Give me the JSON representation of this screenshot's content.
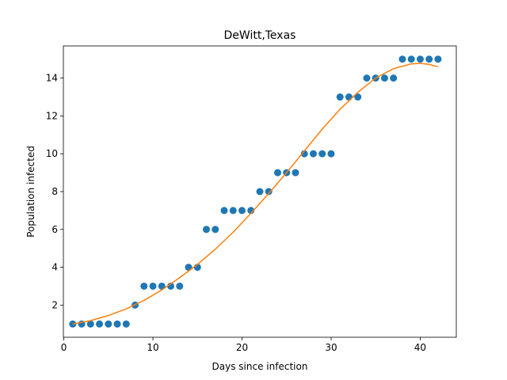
{
  "chart_data": {
    "type": "scatter",
    "title": "DeWitt,Texas",
    "xlabel": "Days since infection",
    "ylabel": "Population infected",
    "xlim": [
      -0.05,
      44.05
    ],
    "ylim": [
      0.3,
      15.7
    ],
    "xticks": [
      0,
      10,
      20,
      30,
      40
    ],
    "yticks": [
      2,
      4,
      6,
      8,
      10,
      12,
      14
    ],
    "grid": false,
    "legend": "none",
    "series": [
      {
        "kind": "scatter",
        "color": "#1f77b4",
        "x": [
          1,
          2,
          3,
          4,
          5,
          6,
          7,
          8,
          9,
          10,
          11,
          12,
          13,
          14,
          15,
          16,
          17,
          18,
          19,
          20,
          21,
          22,
          23,
          24,
          25,
          26,
          27,
          28,
          29,
          30,
          31,
          32,
          33,
          34,
          35,
          36,
          37,
          38,
          39,
          40,
          41,
          42
        ],
        "y": [
          1,
          1,
          1,
          1,
          1,
          1,
          1,
          2,
          3,
          3,
          3,
          3,
          3,
          4,
          4,
          6,
          6,
          7,
          7,
          7,
          7,
          8,
          8,
          9,
          9,
          9,
          10,
          10,
          10,
          10,
          13,
          13,
          13,
          14,
          14,
          14,
          14,
          15,
          15,
          15,
          15,
          15
        ]
      },
      {
        "kind": "line",
        "color": "#ff7f0e",
        "x": [
          1,
          3,
          5,
          7,
          9,
          11,
          13,
          15,
          17,
          19,
          21,
          23,
          25,
          27,
          29,
          31,
          33,
          35,
          37,
          39,
          40,
          41,
          42
        ],
        "y": [
          1.0,
          1.18,
          1.45,
          1.8,
          2.25,
          2.8,
          3.45,
          4.15,
          4.95,
          5.85,
          6.85,
          7.9,
          9.0,
          10.15,
          11.3,
          12.35,
          13.25,
          14.0,
          14.5,
          14.75,
          14.78,
          14.72,
          14.6
        ]
      }
    ]
  }
}
